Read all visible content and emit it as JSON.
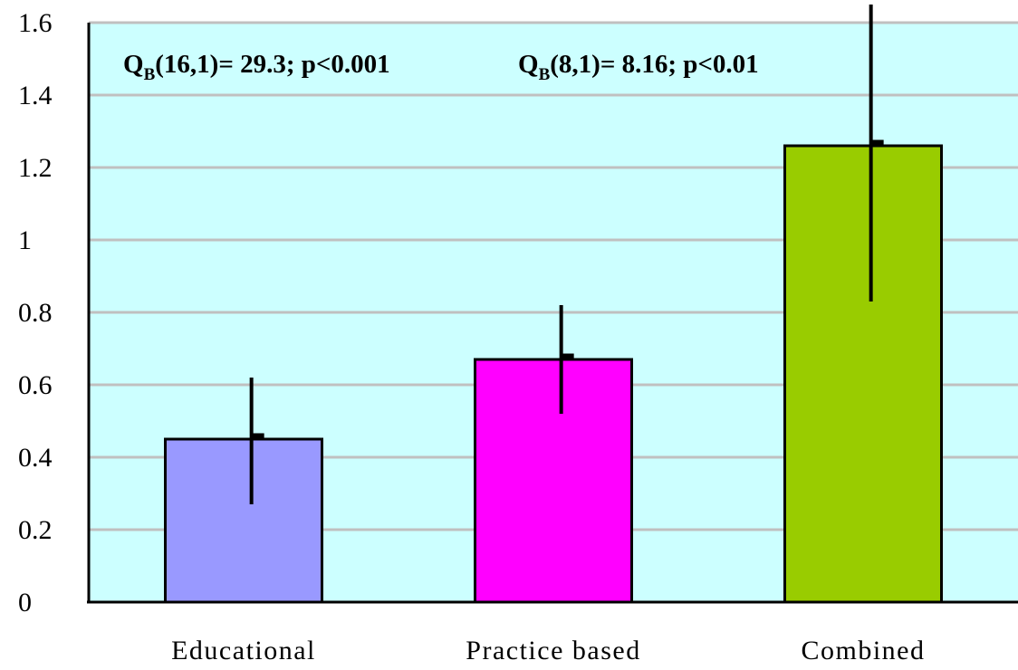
{
  "chart_data": {
    "type": "bar",
    "categories": [
      "Educational",
      "Practice based",
      "Combined"
    ],
    "values": [
      0.45,
      0.67,
      1.26
    ],
    "error_upper": [
      0.62,
      0.82,
      1.65
    ],
    "error_lower": [
      0.27,
      0.52,
      0.83
    ],
    "colors": [
      "#9999ff",
      "#ff00ff",
      "#99cc00"
    ],
    "plot_background": "#ccffff",
    "grid_color": "#c0c0c0",
    "ylim": [
      0,
      1.6
    ],
    "yticks": [
      {
        "value": 0,
        "label": "0"
      },
      {
        "value": 0.2,
        "label": "0.2"
      },
      {
        "value": 0.4,
        "label": "0.4"
      },
      {
        "value": 0.6,
        "label": "0.6"
      },
      {
        "value": 0.8,
        "label": "0.8"
      },
      {
        "value": 1.0,
        "label": "1"
      },
      {
        "value": 1.2,
        "label": "1.2"
      },
      {
        "value": 1.4,
        "label": "1.4"
      },
      {
        "value": 1.6,
        "label": "1.6"
      }
    ],
    "grid": true,
    "title": "",
    "xlabel": "",
    "ylabel": "",
    "annotations": [
      {
        "base": "Q",
        "sub": "B",
        "rest": "(16,1)= 29.3; p<0.001"
      },
      {
        "base": "Q",
        "sub": "B",
        "rest": "(8,1)= 8.16; p<0.01"
      }
    ]
  }
}
